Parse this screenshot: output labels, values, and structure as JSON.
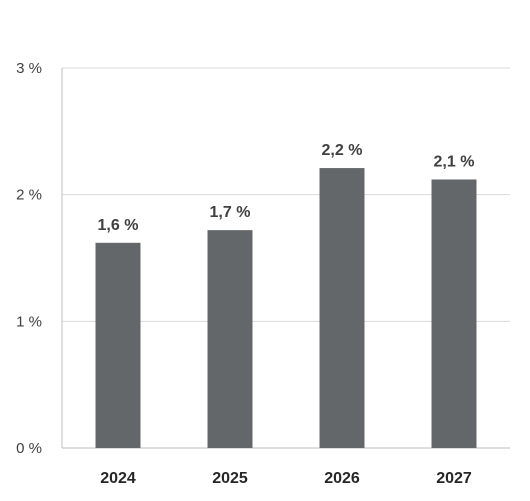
{
  "chart_data": {
    "type": "bar",
    "categories": [
      "2024",
      "2025",
      "2026",
      "2027"
    ],
    "values": [
      1.62,
      1.72,
      2.21,
      2.12
    ],
    "data_labels": [
      "1,6 %",
      "1,7 %",
      "2,2 %",
      "2,1 %"
    ],
    "yticks": [
      0,
      1,
      2,
      3
    ],
    "ytick_labels": [
      "0 %",
      "1 %",
      "2 %",
      "3 %"
    ],
    "ylim": [
      0,
      3
    ],
    "grid": true,
    "legend": "none",
    "colors": {
      "bar": "#63676a",
      "grid": "#d9d9d9",
      "axis": "#bfbfbf"
    }
  }
}
